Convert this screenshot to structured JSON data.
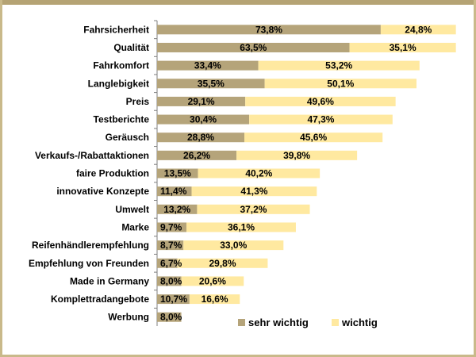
{
  "chart_data": {
    "type": "bar",
    "orientation": "horizontal",
    "stacked": true,
    "title": "",
    "xlabel": "",
    "ylabel": "",
    "grid": false,
    "legend_position": "bottom-right",
    "categories": [
      "Fahrsicherheit",
      "Qualität",
      "Fahrkomfort",
      "Langlebigkeit",
      "Preis",
      "Testberichte",
      "Geräusch",
      "Verkaufs-/Rabattaktionen",
      "faire Produktion",
      "innovative Konzepte",
      "Umwelt",
      "Marke",
      "Reifenhändlerempfehlung",
      "Empfehlung von Freunden",
      "Made in Germany",
      "Komplettradangebote",
      "Werbung"
    ],
    "series": [
      {
        "name": "sehr wichtig",
        "color": "#b5a47a",
        "values": [
          73.8,
          63.5,
          33.4,
          35.5,
          29.1,
          30.4,
          28.8,
          26.2,
          13.5,
          11.4,
          13.2,
          9.7,
          8.7,
          6.7,
          8.0,
          10.7,
          8.0
        ],
        "labels": [
          "73,8%",
          "63,5%",
          "33,4%",
          "35,5%",
          "29,1%",
          "30,4%",
          "28,8%",
          "26,2%",
          "13,5%",
          "11,4%",
          "13,2%",
          "9,7%",
          "8,7%",
          "6,7%",
          "8,0%",
          "10,7%",
          "8,0%"
        ]
      },
      {
        "name": "wichtig",
        "color": "#ffe9a0",
        "values": [
          24.8,
          35.1,
          53.2,
          50.1,
          49.6,
          47.3,
          45.6,
          39.8,
          40.2,
          41.3,
          37.2,
          36.1,
          33.0,
          29.8,
          20.6,
          16.6,
          null
        ],
        "labels": [
          "24,8%",
          "35,1%",
          "53,2%",
          "50,1%",
          "49,6%",
          "47,3%",
          "45,6%",
          "39,8%",
          "40,2%",
          "41,3%",
          "37,2%",
          "36,1%",
          "33,0%",
          "29,8%",
          "20,6%",
          "16,6%",
          ""
        ]
      }
    ]
  }
}
